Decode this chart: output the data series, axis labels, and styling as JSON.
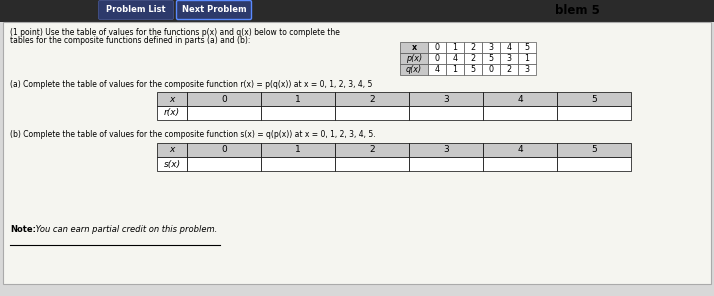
{
  "bg_color": "#d8d8d8",
  "btn1_text": "Problem List",
  "btn1_bg": "#2d3a6b",
  "btn2_text": "Next Problem",
  "btn2_bg": "#2d3a6b",
  "title_right": "blem 5",
  "intro_text": "(1 point) Use the table of values for the functions p(x) and q(x) below to complete the tables for the composite functions defined in parts (a) and (b):",
  "pq_headers": [
    "x",
    "0",
    "1",
    "2",
    "3",
    "4",
    "5"
  ],
  "p_row": [
    "p(x)",
    "0",
    "4",
    "2",
    "5",
    "3",
    "1"
  ],
  "q_row": [
    "q(x)",
    "4",
    "1",
    "5",
    "0",
    "2",
    "3"
  ],
  "part_a_text1": "(a) Complete the table of values for the composite function r(x) = p(q(x)) at x = 0, 1, 2, 3, 4, 5",
  "part_a_label": "r(x)",
  "part_b_text1": "(b) Complete the table of values for the composite function s(x) = q(p(x)) at x = 0, 1, 2, 3, 4, 5.",
  "part_b_label": "s(x)",
  "x_vals": [
    "x",
    "0",
    "1",
    "2",
    "3",
    "4",
    "5"
  ],
  "note_bold": "Note:",
  "note_italic": " You can earn partial credit on this problem.",
  "content_bg": "#f5f5f0",
  "table_header_bg": "#c8c8c8",
  "table_cell_bg": "#ffffff",
  "table_border": "#555555"
}
